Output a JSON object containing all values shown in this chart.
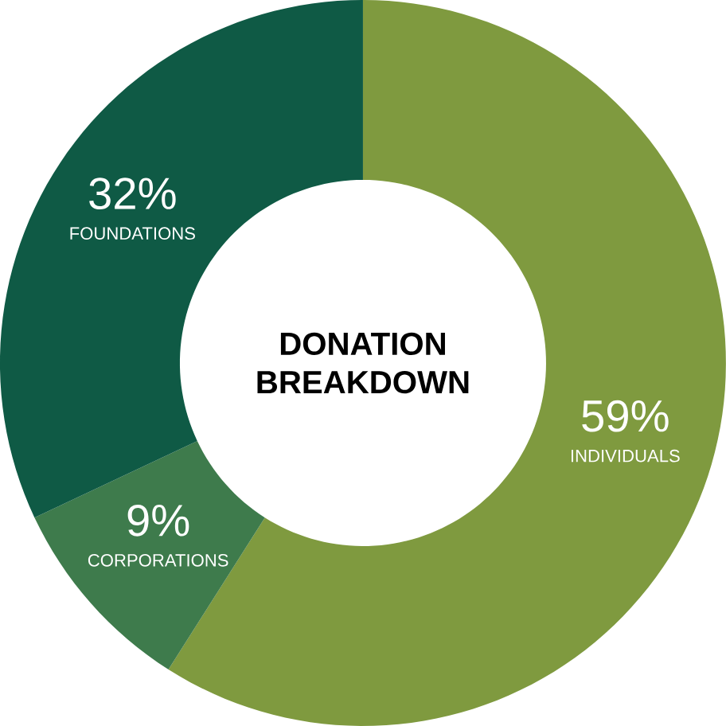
{
  "chart_data": {
    "type": "donut",
    "title": "DONATION BREAKDOWN",
    "categories": [
      "INDIVIDUALS",
      "CORPORATIONS",
      "FOUNDATIONS"
    ],
    "values": [
      59,
      9,
      32
    ],
    "value_labels": [
      "59%",
      "9%",
      "32%"
    ],
    "colors": [
      "#7f9a3f",
      "#3e7b4c",
      "#0f5a45"
    ]
  }
}
